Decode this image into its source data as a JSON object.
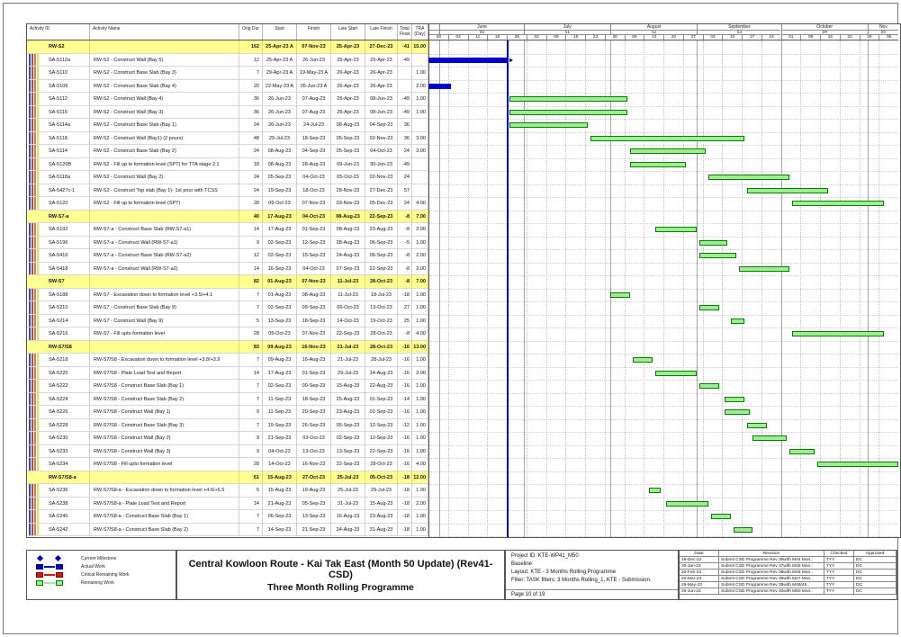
{
  "title": {
    "line1": "Central Kowloon Route - Kai Tak East (Month 50 Update) (Rev41- CSD)",
    "line2": "Three Month Rolling Programme"
  },
  "table": {
    "columns": [
      "Activity ID",
      "Activity Name",
      "Orig Dur",
      "Start",
      "Finish",
      "Late Start",
      "Late Finish",
      "Total Float",
      "TRA (Day)"
    ]
  },
  "timeline": {
    "start": "2023-05-28",
    "end": "2023-11-12",
    "data_date": "2023-06-25",
    "months": [
      {
        "label": "",
        "week": "",
        "from": "2023-05-28",
        "to": "2023-06-01"
      },
      {
        "label": "June",
        "week": "50",
        "from": "2023-06-01",
        "to": "2023-07-01"
      },
      {
        "label": "July",
        "week": "51",
        "from": "2023-07-01",
        "to": "2023-08-01"
      },
      {
        "label": "August",
        "week": "52",
        "from": "2023-08-01",
        "to": "2023-09-01"
      },
      {
        "label": "September",
        "week": "53",
        "from": "2023-09-01",
        "to": "2023-10-01"
      },
      {
        "label": "October",
        "week": "54",
        "from": "2023-10-01",
        "to": "2023-11-01"
      },
      {
        "label": "Nov",
        "week": "55",
        "from": "2023-11-01",
        "to": "2023-11-12"
      }
    ],
    "day_ticks": [
      {
        "date": "2023-05-28",
        "label": "28"
      },
      {
        "date": "2023-06-04",
        "label": "04"
      },
      {
        "date": "2023-06-11",
        "label": "11"
      },
      {
        "date": "2023-06-18",
        "label": "18"
      },
      {
        "date": "2023-06-25",
        "label": "25"
      },
      {
        "date": "2023-07-02",
        "label": "02"
      },
      {
        "date": "2023-07-09",
        "label": "09"
      },
      {
        "date": "2023-07-16",
        "label": "16"
      },
      {
        "date": "2023-07-23",
        "label": "23"
      },
      {
        "date": "2023-07-30",
        "label": "30"
      },
      {
        "date": "2023-08-06",
        "label": "06"
      },
      {
        "date": "2023-08-13",
        "label": "13"
      },
      {
        "date": "2023-08-20",
        "label": "20"
      },
      {
        "date": "2023-08-27",
        "label": "27"
      },
      {
        "date": "2023-09-03",
        "label": "03"
      },
      {
        "date": "2023-09-10",
        "label": "10"
      },
      {
        "date": "2023-09-17",
        "label": "17"
      },
      {
        "date": "2023-09-24",
        "label": "24"
      },
      {
        "date": "2023-10-01",
        "label": "01"
      },
      {
        "date": "2023-10-08",
        "label": "08"
      },
      {
        "date": "2023-10-15",
        "label": "15"
      },
      {
        "date": "2023-10-22",
        "label": "22"
      },
      {
        "date": "2023-10-29",
        "label": "29"
      },
      {
        "date": "2023-11-05",
        "label": "05"
      }
    ]
  },
  "activities": [
    {
      "id": "RW-S2",
      "name": "",
      "dur": "162",
      "start": "25-Apr-23 A",
      "finish": "07-Nov-23",
      "late_start": "25-Apr-23",
      "late_finish": "27-Dec-23",
      "float": "-41",
      "tra": "15.00",
      "summary": true,
      "bar": null
    },
    {
      "id": "SA-5112a",
      "name": "RW-S2 - Construct Wall (Bay 5)",
      "dur": "12",
      "start": "25-Apr-23 A",
      "finish": "26-Jun-23",
      "late_start": "25-Apr-23",
      "late_finish": "25-Apr-23",
      "float": "-49",
      "tra": "",
      "summary": false,
      "bar": {
        "kind": "actual",
        "from": "2023-05-28",
        "to": "2023-06-25",
        "tick": true
      }
    },
    {
      "id": "SA-5110",
      "name": "RW-S2 - Construct Base Slab (Bay 3)",
      "dur": "7",
      "start": "29-Apr-23 A",
      "finish": "19-May-23 A",
      "late_start": "26-Apr-23",
      "late_finish": "26-Apr-23",
      "float": "",
      "tra": "1.00",
      "summary": false,
      "bar": null
    },
    {
      "id": "SA-5106",
      "name": "RW-S2 - Construct Base Slab (Bay 4)",
      "dur": "20",
      "start": "22-May-23 A",
      "finish": "05-Jun-23 A",
      "late_start": "26-Apr-23",
      "late_finish": "26-Apr-23",
      "float": "",
      "tra": "2.00",
      "summary": false,
      "bar": {
        "kind": "actual",
        "from": "2023-05-28",
        "to": "2023-06-05"
      }
    },
    {
      "id": "SA-5112",
      "name": "RW-S2 - Construct Wall (Bay 4)",
      "dur": "36",
      "start": "26-Jun-23",
      "finish": "07-Aug-23",
      "late_start": "26-Apr-23",
      "late_finish": "08-Jun-23",
      "float": "-49",
      "tra": "1.00",
      "summary": false,
      "bar": {
        "kind": "remaining",
        "from": "2023-06-26",
        "to": "2023-08-07"
      }
    },
    {
      "id": "SA-5116",
      "name": "RW-S2 - Construct Wall (Bay 3)",
      "dur": "36",
      "start": "26-Jun-23",
      "finish": "07-Aug-23",
      "late_start": "26-Apr-23",
      "late_finish": "08-Jun-23",
      "float": "-49",
      "tra": "1.00",
      "summary": false,
      "bar": {
        "kind": "remaining",
        "from": "2023-06-26",
        "to": "2023-08-07"
      }
    },
    {
      "id": "SA-5114a",
      "name": "RW-S2 - Construct Base Slab (Bay 1)",
      "dur": "24",
      "start": "26-Jun-23",
      "finish": "24-Jul-23",
      "late_start": "08-Aug-23",
      "late_finish": "04-Sep-23",
      "float": "36",
      "tra": "",
      "summary": false,
      "bar": {
        "kind": "remaining",
        "from": "2023-06-26",
        "to": "2023-07-24"
      }
    },
    {
      "id": "SA-5118",
      "name": "RW-S2 - Construct Wall (Bay1) (2 pours)",
      "dur": "48",
      "start": "25-Jul-23",
      "finish": "18-Sep-23",
      "late_start": "05-Sep-23",
      "late_finish": "02-Nov-23",
      "float": "36",
      "tra": "3.00",
      "summary": false,
      "bar": {
        "kind": "remaining",
        "from": "2023-07-25",
        "to": "2023-09-18"
      }
    },
    {
      "id": "SA-5114",
      "name": "RW-S2 - Construct Base Slab (Bay 2)",
      "dur": "24",
      "start": "08-Aug-23",
      "finish": "04-Sep-23",
      "late_start": "05-Sep-23",
      "late_finish": "04-Oct-23",
      "float": "24",
      "tra": "3.00",
      "summary": false,
      "bar": {
        "kind": "remaining",
        "from": "2023-08-08",
        "to": "2023-09-04"
      }
    },
    {
      "id": "SA-5120B",
      "name": "RW-S2 - Fill up to formation level (SPT) for TTA stage 2.1",
      "dur": "18",
      "start": "08-Aug-23",
      "finish": "28-Aug-23",
      "late_start": "09-Jun-23",
      "late_finish": "30-Jun-23",
      "float": "-49",
      "tra": "",
      "summary": false,
      "bar": {
        "kind": "remaining",
        "from": "2023-08-08",
        "to": "2023-08-28"
      }
    },
    {
      "id": "SA-5118a",
      "name": "RW-S2 - Construct Wall (Bay 2)",
      "dur": "24",
      "start": "05-Sep-23",
      "finish": "04-Oct-23",
      "late_start": "05-Oct-23",
      "late_finish": "02-Nov-23",
      "float": "24",
      "tra": "",
      "summary": false,
      "bar": {
        "kind": "remaining",
        "from": "2023-09-05",
        "to": "2023-10-04"
      }
    },
    {
      "id": "SA-5427c-1",
      "name": "RW-S2 - Construct Top slab  (Bay 1)- 1st pour with TCSS",
      "dur": "24",
      "start": "19-Sep-23",
      "finish": "18-Oct-23",
      "late_start": "28-Nov-23",
      "late_finish": "27-Dec-23",
      "float": "57",
      "tra": "",
      "summary": false,
      "bar": {
        "kind": "remaining",
        "from": "2023-09-19",
        "to": "2023-10-18"
      }
    },
    {
      "id": "SA-5120",
      "name": "RW-S2 - Fill up to formation level (SPT)",
      "dur": "28",
      "start": "05-Oct-23",
      "finish": "07-Nov-23",
      "late_start": "03-Nov-23",
      "late_finish": "05-Dec-23",
      "float": "24",
      "tra": "4.00",
      "summary": false,
      "bar": {
        "kind": "remaining",
        "from": "2023-10-05",
        "to": "2023-11-07"
      }
    },
    {
      "id": "RW-S7-a",
      "name": "",
      "dur": "40",
      "start": "17-Aug-23",
      "finish": "04-Oct-23",
      "late_start": "08-Aug-23",
      "late_finish": "22-Sep-23",
      "float": "-8",
      "tra": "7.00",
      "summary": true,
      "bar": null
    },
    {
      "id": "SA-5192",
      "name": "RW-S7-a - Construct Base Slab (RW-S7-a1)",
      "dur": "14",
      "start": "17-Aug-23",
      "finish": "01-Sep-23",
      "late_start": "08-Aug-23",
      "late_finish": "23-Aug-23",
      "float": "-8",
      "tra": "2.00",
      "summary": false,
      "bar": {
        "kind": "remaining",
        "from": "2023-08-17",
        "to": "2023-09-01"
      }
    },
    {
      "id": "SA-5196",
      "name": "RW-S7-a - Construct Wall (RW-S7-a1)",
      "dur": "9",
      "start": "02-Sep-23",
      "finish": "12-Sep-23",
      "late_start": "28-Aug-23",
      "late_finish": "06-Sep-23",
      "float": "-5",
      "tra": "1.00",
      "summary": false,
      "bar": {
        "kind": "remaining",
        "from": "2023-09-02",
        "to": "2023-09-12"
      }
    },
    {
      "id": "SA-5416",
      "name": "RW-S7-a - Construct Base Slab (RW-S7-a2)",
      "dur": "12",
      "start": "02-Sep-23",
      "finish": "15-Sep-23",
      "late_start": "24-Aug-23",
      "late_finish": "06-Sep-23",
      "float": "-8",
      "tra": "2.00",
      "summary": false,
      "bar": {
        "kind": "remaining",
        "from": "2023-09-02",
        "to": "2023-09-15"
      }
    },
    {
      "id": "SA-5418",
      "name": "RW-S7-a - Construct Wall (RW-S7-a2)",
      "dur": "14",
      "start": "16-Sep-23",
      "finish": "04-Oct-23",
      "late_start": "07-Sep-23",
      "late_finish": "22-Sep-23",
      "float": "-8",
      "tra": "2.00",
      "summary": false,
      "bar": {
        "kind": "remaining",
        "from": "2023-09-16",
        "to": "2023-10-04"
      }
    },
    {
      "id": "RW-S7",
      "name": "",
      "dur": "82",
      "start": "01-Aug-23",
      "finish": "07-Nov-23",
      "late_start": "11-Jul-23",
      "late_finish": "28-Oct-23",
      "float": "-8",
      "tra": "7.00",
      "summary": true,
      "bar": null
    },
    {
      "id": "SA-5188",
      "name": "RW-S7 - Excavation down to formation level +3.5/+4.1",
      "dur": "7",
      "start": "01-Aug-23",
      "finish": "08-Aug-23",
      "late_start": "11-Jul-23",
      "late_finish": "18-Jul-23",
      "float": "-18",
      "tra": "1.00",
      "summary": false,
      "bar": {
        "kind": "remaining",
        "from": "2023-08-01",
        "to": "2023-08-08"
      }
    },
    {
      "id": "SA-5210",
      "name": "RW-S7 - Construct Base Slab (Bay 9)",
      "dur": "7",
      "start": "02-Sep-23",
      "finish": "09-Sep-23",
      "late_start": "06-Oct-23",
      "late_finish": "13-Oct-23",
      "float": "27",
      "tra": "1.00",
      "summary": false,
      "bar": {
        "kind": "remaining",
        "from": "2023-09-02",
        "to": "2023-09-09"
      }
    },
    {
      "id": "SA-5214",
      "name": "RW-S7 - Construct Wall (Bay 9)",
      "dur": "5",
      "start": "13-Sep-23",
      "finish": "18-Sep-23",
      "late_start": "14-Oct-23",
      "late_finish": "19-Oct-23",
      "float": "25",
      "tra": "1.00",
      "summary": false,
      "bar": {
        "kind": "remaining",
        "from": "2023-09-13",
        "to": "2023-09-18"
      }
    },
    {
      "id": "SA-5216",
      "name": "RW-S7 - Fill upto formation level",
      "dur": "28",
      "start": "05-Oct-23",
      "finish": "07-Nov-23",
      "late_start": "22-Sep-23",
      "late_finish": "28-Oct-23",
      "float": "-8",
      "tra": "4.00",
      "summary": false,
      "bar": {
        "kind": "remaining",
        "from": "2023-10-05",
        "to": "2023-11-07"
      }
    },
    {
      "id": "RW-S7/S8",
      "name": "",
      "dur": "83",
      "start": "09-Aug-23",
      "finish": "16-Nov-23",
      "late_start": "21-Jul-23",
      "late_finish": "28-Oct-23",
      "float": "-16",
      "tra": "13.00",
      "summary": true,
      "bar": null
    },
    {
      "id": "SA-5218",
      "name": "RW-S7/S8 - Excavation down to formation level +3.8/+3.9",
      "dur": "7",
      "start": "09-Aug-23",
      "finish": "16-Aug-23",
      "late_start": "21-Jul-23",
      "late_finish": "28-Jul-23",
      "float": "-16",
      "tra": "1.00",
      "summary": false,
      "bar": {
        "kind": "remaining",
        "from": "2023-08-09",
        "to": "2023-08-16"
      }
    },
    {
      "id": "SA-5220",
      "name": "RW-S7/S8 - Plate Load Test and Report",
      "dur": "14",
      "start": "17-Aug-23",
      "finish": "01-Sep-23",
      "late_start": "29-Jul-23",
      "late_finish": "14-Aug-23",
      "float": "-16",
      "tra": "2.00",
      "summary": false,
      "bar": {
        "kind": "remaining",
        "from": "2023-08-17",
        "to": "2023-09-01"
      }
    },
    {
      "id": "SA-5222",
      "name": "RW-S7/S8 - Construct Base Slab (Bay 1)",
      "dur": "7",
      "start": "02-Sep-23",
      "finish": "09-Sep-23",
      "late_start": "15-Aug-23",
      "late_finish": "22-Aug-23",
      "float": "-16",
      "tra": "1.00",
      "summary": false,
      "bar": {
        "kind": "remaining",
        "from": "2023-09-02",
        "to": "2023-09-09"
      }
    },
    {
      "id": "SA-5224",
      "name": "RW-S7/S8 - Construct Base Slab (Bay 2)",
      "dur": "7",
      "start": "11-Sep-23",
      "finish": "18-Sep-23",
      "late_start": "25-Aug-23",
      "late_finish": "01-Sep-23",
      "float": "-14",
      "tra": "1.00",
      "summary": false,
      "bar": {
        "kind": "remaining",
        "from": "2023-09-11",
        "to": "2023-09-18"
      }
    },
    {
      "id": "SA-5226",
      "name": "RW-S7/S8 - Construct Wall (Bay 1)",
      "dur": "9",
      "start": "11-Sep-23",
      "finish": "20-Sep-23",
      "late_start": "23-Aug-23",
      "late_finish": "01-Sep-23",
      "float": "-16",
      "tra": "1.00",
      "summary": false,
      "bar": {
        "kind": "remaining",
        "from": "2023-09-11",
        "to": "2023-09-20"
      }
    },
    {
      "id": "SA-5228",
      "name": "RW-S7/S8 - Construct Base Slab (Bay 3)",
      "dur": "7",
      "start": "19-Sep-23",
      "finish": "26-Sep-23",
      "late_start": "05-Sep-23",
      "late_finish": "12-Sep-23",
      "float": "-12",
      "tra": "1.00",
      "summary": false,
      "bar": {
        "kind": "remaining",
        "from": "2023-09-19",
        "to": "2023-09-26"
      }
    },
    {
      "id": "SA-5230",
      "name": "RW-S7/S8 - Construct Wall (Bay 2)",
      "dur": "9",
      "start": "21-Sep-23",
      "finish": "03-Oct-23",
      "late_start": "02-Sep-23",
      "late_finish": "12-Sep-23",
      "float": "-16",
      "tra": "1.00",
      "summary": false,
      "bar": {
        "kind": "remaining",
        "from": "2023-09-21",
        "to": "2023-10-03"
      }
    },
    {
      "id": "SA-5232",
      "name": "RW-S7/S8 - Construct Wall (Bay 3)",
      "dur": "9",
      "start": "04-Oct-23",
      "finish": "13-Oct-23",
      "late_start": "13-Sep-23",
      "late_finish": "22-Sep-23",
      "float": "-16",
      "tra": "1.00",
      "summary": false,
      "bar": {
        "kind": "remaining",
        "from": "2023-10-04",
        "to": "2023-10-13"
      }
    },
    {
      "id": "SA-5234",
      "name": "RW-S7/S8 - Fill upto formation level",
      "dur": "28",
      "start": "14-Oct-23",
      "finish": "16-Nov-23",
      "late_start": "22-Sep-23",
      "late_finish": "28-Oct-23",
      "float": "-16",
      "tra": "4.00",
      "summary": false,
      "bar": {
        "kind": "remaining",
        "from": "2023-10-14",
        "to": "2023-11-16"
      }
    },
    {
      "id": "RW-S7/S8-a",
      "name": "",
      "dur": "61",
      "start": "15-Aug-23",
      "finish": "27-Oct-23",
      "late_start": "25-Jul-23",
      "late_finish": "05-Oct-23",
      "float": "-18",
      "tra": "12.00",
      "summary": true,
      "bar": null
    },
    {
      "id": "SA-5236",
      "name": "RW-S7/S8-a - Excavation down to formation level +4.6/+6.5",
      "dur": "5",
      "start": "15-Aug-23",
      "finish": "19-Aug-23",
      "late_start": "25-Jul-23",
      "late_finish": "29-Jul-23",
      "float": "-18",
      "tra": "1.00",
      "summary": false,
      "bar": {
        "kind": "remaining",
        "from": "2023-08-15",
        "to": "2023-08-19"
      }
    },
    {
      "id": "SA-5238",
      "name": "RW-S7/S8-a - Plate Load Test and Report",
      "dur": "14",
      "start": "21-Aug-23",
      "finish": "05-Sep-23",
      "late_start": "31-Jul-23",
      "late_finish": "15-Aug-23",
      "float": "-18",
      "tra": "2.00",
      "summary": false,
      "bar": {
        "kind": "remaining",
        "from": "2023-08-21",
        "to": "2023-09-05"
      }
    },
    {
      "id": "SA-5240",
      "name": "RW-S7/S8-a - Construct Base Slab (Bay 1)",
      "dur": "7",
      "start": "06-Sep-23",
      "finish": "13-Sep-23",
      "late_start": "16-Aug-23",
      "late_finish": "23-Aug-23",
      "float": "-18",
      "tra": "1.00",
      "summary": false,
      "bar": {
        "kind": "remaining",
        "from": "2023-09-06",
        "to": "2023-09-13"
      }
    },
    {
      "id": "SA-5242",
      "name": "RW-S7/S8-a - Construct Base Slab (Bay 2)",
      "dur": "7",
      "start": "14-Sep-23",
      "finish": "21-Sep-23",
      "late_start": "24-Aug-23",
      "late_finish": "31-Aug-23",
      "float": "-18",
      "tra": "1.00",
      "summary": false,
      "bar": {
        "kind": "remaining",
        "from": "2023-09-14",
        "to": "2023-09-21"
      }
    }
  ],
  "legend": [
    {
      "label": "Current Milestone",
      "type": "milestone"
    },
    {
      "label": "Actual Work",
      "type": "bar",
      "color": "#0000cc",
      "border": "#000080"
    },
    {
      "label": "Critical Remaining Work",
      "type": "bar",
      "color": "#dd1111",
      "border": "#770000"
    },
    {
      "label": "Remaining Work",
      "type": "bar",
      "color": "#9cee8e",
      "border": "#0b7a0b"
    }
  ],
  "project_info": {
    "lines": [
      "Project ID: KTE-WP41_M50",
      "Baseline:",
      "Layout: KTE - 3 Months Rolling Programme",
      "Filter: TASK filters: 3 Months Rolling_1, KTE - Submission."
    ],
    "page": "Page 10 of 19"
  },
  "revision_table": {
    "headers": [
      "Date",
      "Revision",
      "Checked",
      "Approved"
    ],
    "rows": [
      [
        "19-Dec-22",
        "Submit CSD Programme Rev 36with M44 Mon..",
        "TYY",
        "DC"
      ],
      [
        "20-Jan-23",
        "Submit CSD Programme Rev 37with M45 Mon..",
        "TYY",
        "DC"
      ],
      [
        "20-Feb-23",
        "Submit CSD Programme Rev 38with M46 Mon..",
        "TYY",
        "DC"
      ],
      [
        "20-Mar-23",
        "Submit CSD Programme Rev 39with M47 Mon..",
        "TYY",
        "DC"
      ],
      [
        "26-May-23",
        "Submit CSD Programme Rev 39with M48/49..",
        "TYY",
        "DC"
      ],
      [
        "20-Jun-23",
        "Submit CSD Programme Rev 40with M50 Mon..",
        "TYY",
        "DC"
      ]
    ]
  },
  "colors": {
    "summary_row": "#ffff8f",
    "actual_bar": "#0000cc",
    "remaining_fill": "#9cee8e",
    "remaining_border": "#0b7a0b",
    "data_date_line": "#0000ee",
    "stripes": [
      "#4444bb",
      "#bb4444",
      "#c08850",
      "#e0e060"
    ]
  }
}
